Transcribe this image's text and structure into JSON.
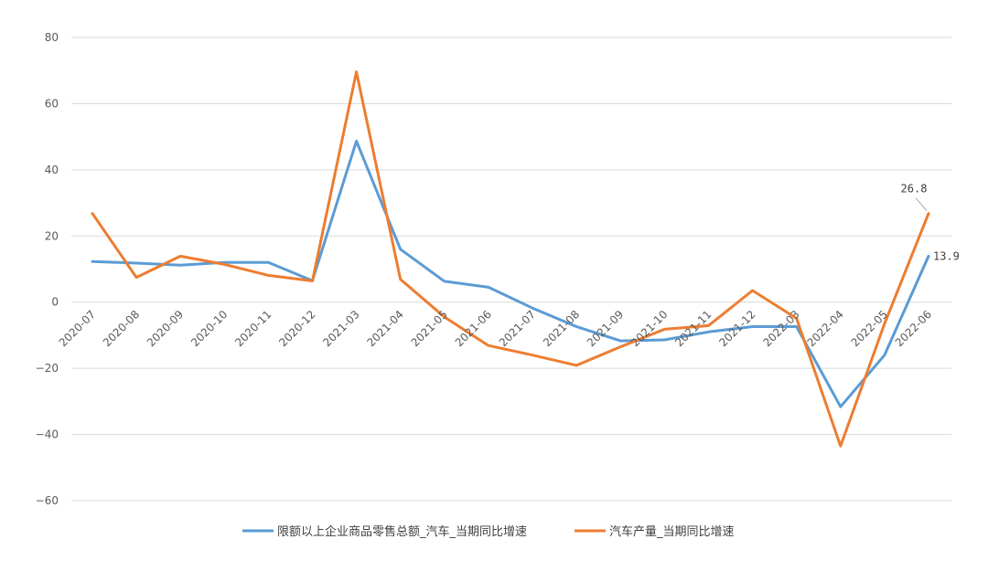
{
  "chart_data": {
    "type": "line",
    "categories": [
      "2020-07",
      "2020-08",
      "2020-09",
      "2020-10",
      "2020-11",
      "2020-12",
      "2021-03",
      "2021-04",
      "2021-05",
      "2021-06",
      "2021-07",
      "2021-08",
      "2021-09",
      "2021-10",
      "2021-11",
      "2021-12",
      "2022-03",
      "2022-04",
      "2022-05",
      "2022-06"
    ],
    "series": [
      {
        "name": "限额以上企业商品零售总额_汽车_当期同比增速",
        "color": "#5B9BD5",
        "values": [
          12.3,
          11.8,
          11.2,
          12.0,
          12.0,
          6.5,
          48.7,
          16.0,
          6.3,
          4.5,
          -1.8,
          -7.4,
          -11.7,
          -11.4,
          -9.0,
          -7.4,
          -7.4,
          -31.6,
          -16.0,
          13.9
        ]
      },
      {
        "name": "汽车产量_当期同比增速",
        "color": "#ED7D31",
        "values": [
          26.8,
          7.5,
          13.9,
          11.4,
          8.1,
          6.4,
          69.6,
          6.9,
          -4.5,
          -13.1,
          -16.0,
          -19.1,
          -13.5,
          -8.2,
          -7.1,
          3.5,
          -4.9,
          -43.5,
          -6.5,
          26.8
        ]
      }
    ],
    "ylim": [
      -60,
      80
    ],
    "yticks": [
      80,
      60,
      40,
      20,
      0,
      -20,
      -40,
      -60
    ],
    "grid": true,
    "legend_position": "bottom",
    "data_labels": [
      {
        "series": 0,
        "index": 19,
        "text": "13.9"
      },
      {
        "series": 1,
        "index": 19,
        "text": "26.8"
      }
    ]
  }
}
